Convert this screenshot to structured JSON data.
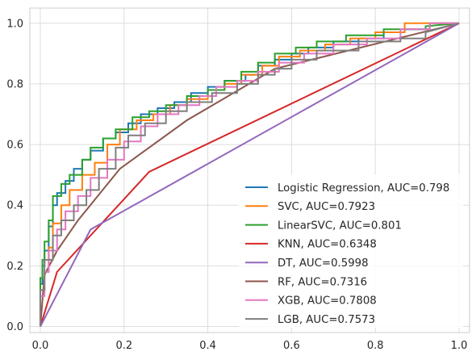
{
  "chart_data": {
    "type": "line",
    "title": "",
    "xlabel": "",
    "ylabel": "",
    "xlim": [
      -0.025,
      1.025
    ],
    "ylim": [
      -0.02,
      1.05
    ],
    "xticks": [
      "0.0",
      "0.2",
      "0.4",
      "0.6",
      "0.8",
      "1.0"
    ],
    "yticks": [
      "0.0",
      "0.2",
      "0.4",
      "0.6",
      "0.8",
      "1.0"
    ],
    "grid": true,
    "legend_position": "lower-right",
    "series": [
      {
        "name": "Logistic Regression, AUC=0.798",
        "color": "#1f77b4",
        "x": [
          0,
          0,
          0.005,
          0.005,
          0.01,
          0.01,
          0.02,
          0.02,
          0.03,
          0.03,
          0.04,
          0.04,
          0.06,
          0.06,
          0.08,
          0.08,
          0.1,
          0.1,
          0.12,
          0.12,
          0.15,
          0.15,
          0.18,
          0.18,
          0.21,
          0.21,
          0.24,
          0.24,
          0.28,
          0.28,
          0.32,
          0.32,
          0.36,
          0.36,
          0.4,
          0.4,
          0.44,
          0.44,
          0.49,
          0.49,
          0.52,
          0.52,
          0.56,
          0.56,
          0.6,
          0.6,
          0.64,
          0.64,
          0.7,
          0.7,
          0.76,
          0.76,
          0.82,
          0.82,
          0.87,
          0.87,
          0.93,
          0.93,
          1.0
        ],
        "y": [
          0,
          0.14,
          0.14,
          0.2,
          0.2,
          0.25,
          0.25,
          0.33,
          0.33,
          0.4,
          0.4,
          0.44,
          0.44,
          0.48,
          0.48,
          0.52,
          0.52,
          0.55,
          0.55,
          0.58,
          0.58,
          0.62,
          0.62,
          0.64,
          0.64,
          0.67,
          0.67,
          0.7,
          0.7,
          0.72,
          0.72,
          0.74,
          0.74,
          0.77,
          0.77,
          0.79,
          0.79,
          0.81,
          0.81,
          0.83,
          0.83,
          0.86,
          0.86,
          0.88,
          0.88,
          0.9,
          0.9,
          0.92,
          0.92,
          0.94,
          0.94,
          0.95,
          0.95,
          0.97,
          0.97,
          0.98,
          0.98,
          1.0,
          1.0
        ]
      },
      {
        "name": "SVC, AUC=0.7923",
        "color": "#ff7f0e",
        "x": [
          0,
          0,
          0.01,
          0.01,
          0.02,
          0.02,
          0.03,
          0.03,
          0.05,
          0.05,
          0.07,
          0.07,
          0.1,
          0.1,
          0.13,
          0.13,
          0.16,
          0.16,
          0.19,
          0.19,
          0.23,
          0.23,
          0.27,
          0.27,
          0.31,
          0.31,
          0.35,
          0.35,
          0.4,
          0.4,
          0.44,
          0.44,
          0.48,
          0.48,
          0.53,
          0.53,
          0.57,
          0.57,
          0.62,
          0.62,
          0.68,
          0.68,
          0.74,
          0.74,
          0.8,
          0.8,
          0.87,
          0.87,
          1.0
        ],
        "y": [
          0,
          0.12,
          0.12,
          0.18,
          0.18,
          0.26,
          0.26,
          0.34,
          0.34,
          0.4,
          0.4,
          0.45,
          0.45,
          0.5,
          0.5,
          0.54,
          0.54,
          0.6,
          0.6,
          0.65,
          0.65,
          0.68,
          0.68,
          0.7,
          0.7,
          0.73,
          0.73,
          0.75,
          0.75,
          0.78,
          0.78,
          0.8,
          0.8,
          0.83,
          0.83,
          0.86,
          0.86,
          0.89,
          0.89,
          0.91,
          0.91,
          0.93,
          0.93,
          0.95,
          0.95,
          0.97,
          0.97,
          1.0,
          1.0
        ]
      },
      {
        "name": "LinearSVC, AUC=0.801",
        "color": "#2ca02c",
        "x": [
          0,
          0,
          0.005,
          0.005,
          0.01,
          0.01,
          0.02,
          0.02,
          0.03,
          0.03,
          0.05,
          0.05,
          0.07,
          0.07,
          0.1,
          0.1,
          0.12,
          0.12,
          0.15,
          0.15,
          0.18,
          0.18,
          0.22,
          0.22,
          0.26,
          0.26,
          0.3,
          0.3,
          0.35,
          0.35,
          0.4,
          0.4,
          0.44,
          0.44,
          0.48,
          0.48,
          0.52,
          0.52,
          0.56,
          0.56,
          0.61,
          0.61,
          0.66,
          0.66,
          0.73,
          0.73,
          0.82,
          0.82,
          0.92,
          0.92,
          1.0
        ],
        "y": [
          0,
          0.16,
          0.16,
          0.22,
          0.22,
          0.28,
          0.28,
          0.35,
          0.35,
          0.43,
          0.43,
          0.47,
          0.47,
          0.5,
          0.5,
          0.55,
          0.55,
          0.59,
          0.59,
          0.62,
          0.62,
          0.65,
          0.65,
          0.69,
          0.69,
          0.71,
          0.71,
          0.73,
          0.73,
          0.76,
          0.76,
          0.78,
          0.78,
          0.81,
          0.81,
          0.84,
          0.84,
          0.87,
          0.87,
          0.9,
          0.9,
          0.92,
          0.92,
          0.94,
          0.94,
          0.96,
          0.96,
          0.98,
          0.98,
          0.99,
          1.0
        ]
      },
      {
        "name": "KNN, AUC=0.6348",
        "color": "#d62728",
        "x": [
          0,
          0.04,
          0.26,
          1.0
        ],
        "y": [
          0,
          0.18,
          0.51,
          1.0
        ]
      },
      {
        "name": "DT, AUC=0.5998",
        "color": "#9467bd",
        "x": [
          0,
          0.12,
          1.0
        ],
        "y": [
          0,
          0.32,
          1.0
        ]
      },
      {
        "name": "RF, AUC=0.7316",
        "color": "#8c564b",
        "x": [
          0,
          0.01,
          0.04,
          0.09,
          0.19,
          0.35,
          0.56,
          1.0
        ],
        "y": [
          0,
          0.17,
          0.25,
          0.35,
          0.52,
          0.68,
          0.85,
          1.0
        ]
      },
      {
        "name": "XGB, AUC=0.7808",
        "color": "#e377c2",
        "x": [
          0,
          0,
          0.01,
          0.01,
          0.02,
          0.02,
          0.04,
          0.04,
          0.06,
          0.06,
          0.09,
          0.09,
          0.12,
          0.12,
          0.16,
          0.16,
          0.2,
          0.2,
          0.24,
          0.24,
          0.28,
          0.28,
          0.33,
          0.33,
          0.38,
          0.38,
          0.42,
          0.42,
          0.47,
          0.47,
          0.52,
          0.52,
          0.57,
          0.57,
          0.63,
          0.63,
          0.7,
          0.7,
          0.78,
          0.78,
          0.86,
          0.86,
          0.93,
          0.93,
          1.0
        ],
        "y": [
          0,
          0.1,
          0.1,
          0.18,
          0.18,
          0.25,
          0.25,
          0.32,
          0.32,
          0.38,
          0.38,
          0.43,
          0.43,
          0.49,
          0.49,
          0.55,
          0.55,
          0.61,
          0.61,
          0.66,
          0.66,
          0.7,
          0.7,
          0.73,
          0.73,
          0.76,
          0.76,
          0.79,
          0.79,
          0.81,
          0.81,
          0.84,
          0.84,
          0.87,
          0.87,
          0.9,
          0.9,
          0.93,
          0.93,
          0.95,
          0.95,
          0.98,
          0.98,
          1.0,
          1.0
        ]
      },
      {
        "name": "LGB, AUC=0.7573",
        "color": "#7f7f7f",
        "x": [
          0,
          0,
          0.01,
          0.01,
          0.03,
          0.03,
          0.05,
          0.05,
          0.08,
          0.08,
          0.11,
          0.11,
          0.14,
          0.14,
          0.18,
          0.18,
          0.21,
          0.21,
          0.25,
          0.25,
          0.3,
          0.3,
          0.35,
          0.35,
          0.41,
          0.41,
          0.47,
          0.47,
          0.52,
          0.52,
          0.56,
          0.56,
          0.6,
          0.6,
          0.66,
          0.66,
          0.76,
          0.76,
          0.86,
          0.86,
          0.92,
          0.92,
          1.0
        ],
        "y": [
          0,
          0.12,
          0.12,
          0.22,
          0.22,
          0.3,
          0.3,
          0.35,
          0.35,
          0.4,
          0.4,
          0.45,
          0.45,
          0.52,
          0.52,
          0.59,
          0.59,
          0.63,
          0.63,
          0.67,
          0.67,
          0.71,
          0.71,
          0.74,
          0.74,
          0.77,
          0.77,
          0.8,
          0.8,
          0.83,
          0.83,
          0.85,
          0.85,
          0.88,
          0.88,
          0.91,
          0.91,
          0.94,
          0.94,
          0.95,
          0.95,
          0.97,
          1.0
        ]
      }
    ]
  }
}
